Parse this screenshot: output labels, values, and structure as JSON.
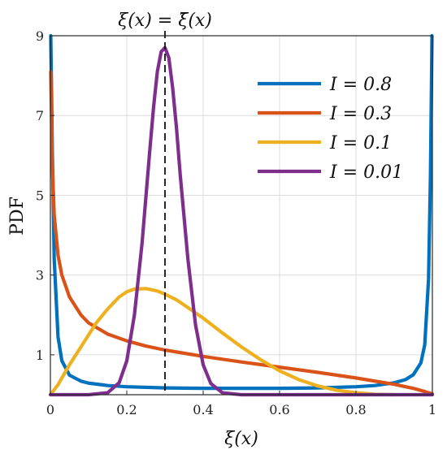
{
  "chart_data": {
    "type": "line",
    "title": "ξ(x) = ξ̄(x)",
    "xlabel": "ξ(x)",
    "ylabel": "PDF",
    "xlim": [
      0,
      1
    ],
    "ylim": [
      0,
      9
    ],
    "x_ticks": [
      "0",
      "0.2",
      "0.4",
      "0.6",
      "0.8",
      "1"
    ],
    "y_ticks": [
      "1",
      "3",
      "5",
      "7",
      "9"
    ],
    "grid": true,
    "legend_position": "top-right",
    "reference_line": {
      "x": 0.3,
      "style": "dashed",
      "color": "#111111"
    },
    "series": [
      {
        "name": "I = 0.8",
        "color": "#0072BD",
        "x": [
          0.001,
          0.005,
          0.01,
          0.02,
          0.03,
          0.05,
          0.08,
          0.1,
          0.15,
          0.2,
          0.3,
          0.4,
          0.5,
          0.6,
          0.7,
          0.8,
          0.85,
          0.9,
          0.93,
          0.95,
          0.97,
          0.98,
          0.99,
          0.995,
          0.999
        ],
        "y": [
          9.0,
          6.2,
          3.4,
          1.45,
          0.85,
          0.49,
          0.34,
          0.29,
          0.23,
          0.2,
          0.17,
          0.16,
          0.16,
          0.16,
          0.17,
          0.2,
          0.23,
          0.3,
          0.38,
          0.5,
          0.8,
          1.25,
          2.9,
          5.5,
          9.0
        ]
      },
      {
        "name": "I = 0.3",
        "color": "#D95319",
        "x": [
          0.001,
          0.005,
          0.01,
          0.02,
          0.03,
          0.05,
          0.08,
          0.1,
          0.15,
          0.2,
          0.25,
          0.3,
          0.4,
          0.5,
          0.6,
          0.7,
          0.8,
          0.9,
          0.95,
          0.98,
          1.0
        ],
        "y": [
          8.1,
          5.8,
          4.5,
          3.5,
          3.0,
          2.45,
          2.0,
          1.8,
          1.52,
          1.35,
          1.22,
          1.12,
          0.96,
          0.82,
          0.69,
          0.56,
          0.42,
          0.26,
          0.16,
          0.08,
          0.02
        ]
      },
      {
        "name": "I = 0.1",
        "color": "#EDB120",
        "x": [
          0.0,
          0.02,
          0.05,
          0.08,
          0.1,
          0.12,
          0.15,
          0.18,
          0.2,
          0.22,
          0.25,
          0.28,
          0.3,
          0.33,
          0.35,
          0.4,
          0.45,
          0.5,
          0.55,
          0.6,
          0.65,
          0.7,
          0.75,
          0.8,
          0.85,
          0.9
        ],
        "y": [
          0.0,
          0.25,
          0.75,
          1.2,
          1.5,
          1.8,
          2.15,
          2.45,
          2.58,
          2.65,
          2.66,
          2.6,
          2.52,
          2.38,
          2.25,
          1.92,
          1.55,
          1.2,
          0.88,
          0.6,
          0.38,
          0.22,
          0.11,
          0.05,
          0.01,
          0.0
        ]
      },
      {
        "name": "I = 0.01",
        "color": "#7E2F8E",
        "x": [
          0.0,
          0.1,
          0.15,
          0.18,
          0.2,
          0.22,
          0.24,
          0.26,
          0.27,
          0.28,
          0.29,
          0.3,
          0.31,
          0.32,
          0.33,
          0.34,
          0.36,
          0.38,
          0.4,
          0.42,
          0.45,
          0.5,
          1.0
        ],
        "y": [
          0.0,
          0.0,
          0.05,
          0.3,
          0.85,
          2.0,
          3.8,
          6.1,
          7.2,
          8.1,
          8.6,
          8.7,
          8.45,
          7.7,
          6.7,
          5.5,
          3.4,
          1.75,
          0.75,
          0.28,
          0.05,
          0.0,
          0.0
        ]
      }
    ]
  }
}
